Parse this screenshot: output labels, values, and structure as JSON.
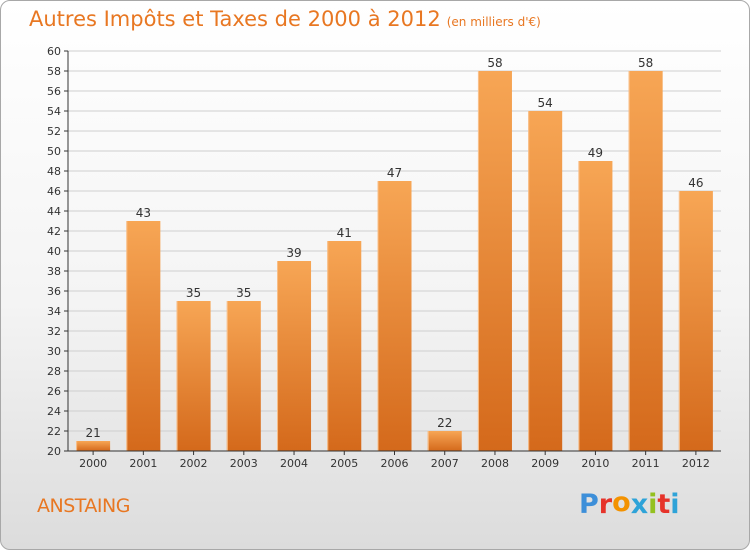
{
  "header": {
    "title": "Autres Impôts et Taxes de 2000 à 2012",
    "subtitle": "(en milliers d'€)"
  },
  "footer": {
    "commune": "ANSTAING",
    "logo": [
      "P",
      "r",
      "o",
      "x",
      "i",
      "t",
      "i"
    ],
    "logo_colors": [
      "#3d8fd9",
      "#e6332a",
      "#f39200",
      "#2ea3d8",
      "#94c11f",
      "#e6332a",
      "#2ea3d8"
    ]
  },
  "colors": {
    "bar_top": "#f7a655",
    "bar_bottom": "#d4691b",
    "title": "#e87722",
    "grid": "#cfcfcf",
    "axis": "#333333"
  },
  "chart_data": {
    "type": "bar",
    "title": "Autres Impôts et Taxes de 2000 à 2012",
    "subtitle": "(en milliers d'€)",
    "categories": [
      "2000",
      "2001",
      "2002",
      "2003",
      "2004",
      "2005",
      "2006",
      "2007",
      "2008",
      "2009",
      "2010",
      "2011",
      "2012"
    ],
    "values": [
      21,
      43,
      35,
      35,
      39,
      41,
      47,
      22,
      58,
      54,
      49,
      58,
      46
    ],
    "ylim": [
      20,
      60
    ],
    "yticks": [
      20,
      22,
      24,
      26,
      28,
      30,
      32,
      34,
      36,
      38,
      40,
      42,
      44,
      46,
      48,
      50,
      52,
      54,
      56,
      58,
      60
    ],
    "grid": true,
    "data_labels": true
  }
}
